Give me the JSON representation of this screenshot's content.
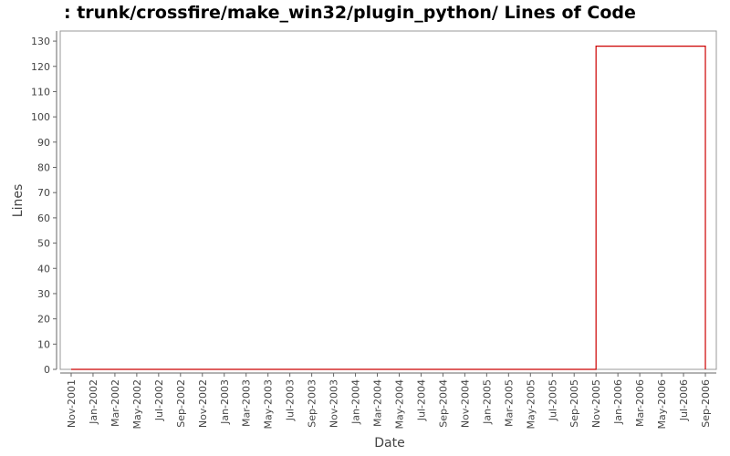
{
  "chart_data": {
    "type": "line",
    "title": ": trunk/crossfire/make_win32/plugin_python/ Lines of Code",
    "x_label": "Date",
    "y_label": "Lines",
    "x": [
      "2001-11",
      "2005-11",
      "2005-11",
      "2006-09",
      "2006-09"
    ],
    "series": [
      {
        "name": "Lines",
        "color": "#cc0000",
        "values": [
          0,
          0,
          128,
          128,
          0
        ]
      }
    ],
    "xlim": [
      "2001-10",
      "2006-10"
    ],
    "ylim": [
      0,
      134
    ],
    "yticks": [
      0,
      10,
      20,
      30,
      40,
      50,
      60,
      70,
      80,
      90,
      100,
      110,
      120,
      130
    ],
    "xticks": [
      {
        "value": "2001-11",
        "label": "Nov-2001"
      },
      {
        "value": "2002-01",
        "label": "Jan-2002"
      },
      {
        "value": "2002-03",
        "label": "Mar-2002"
      },
      {
        "value": "2002-05",
        "label": "May-2002"
      },
      {
        "value": "2002-07",
        "label": "Jul-2002"
      },
      {
        "value": "2002-09",
        "label": "Sep-2002"
      },
      {
        "value": "2002-11",
        "label": "Nov-2002"
      },
      {
        "value": "2003-01",
        "label": "Jan-2003"
      },
      {
        "value": "2003-03",
        "label": "Mar-2003"
      },
      {
        "value": "2003-05",
        "label": "May-2003"
      },
      {
        "value": "2003-07",
        "label": "Jul-2003"
      },
      {
        "value": "2003-09",
        "label": "Sep-2003"
      },
      {
        "value": "2003-11",
        "label": "Nov-2003"
      },
      {
        "value": "2004-01",
        "label": "Jan-2004"
      },
      {
        "value": "2004-03",
        "label": "Mar-2004"
      },
      {
        "value": "2004-05",
        "label": "May-2004"
      },
      {
        "value": "2004-07",
        "label": "Jul-2004"
      },
      {
        "value": "2004-09",
        "label": "Sep-2004"
      },
      {
        "value": "2004-11",
        "label": "Nov-2004"
      },
      {
        "value": "2005-01",
        "label": "Jan-2005"
      },
      {
        "value": "2005-03",
        "label": "Mar-2005"
      },
      {
        "value": "2005-05",
        "label": "May-2005"
      },
      {
        "value": "2005-07",
        "label": "Jul-2005"
      },
      {
        "value": "2005-09",
        "label": "Sep-2005"
      },
      {
        "value": "2005-11",
        "label": "Nov-2005"
      },
      {
        "value": "2006-01",
        "label": "Jan-2006"
      },
      {
        "value": "2006-03",
        "label": "Mar-2006"
      },
      {
        "value": "2006-05",
        "label": "May-2006"
      },
      {
        "value": "2006-07",
        "label": "Jul-2006"
      },
      {
        "value": "2006-09",
        "label": "Sep-2006"
      }
    ]
  }
}
